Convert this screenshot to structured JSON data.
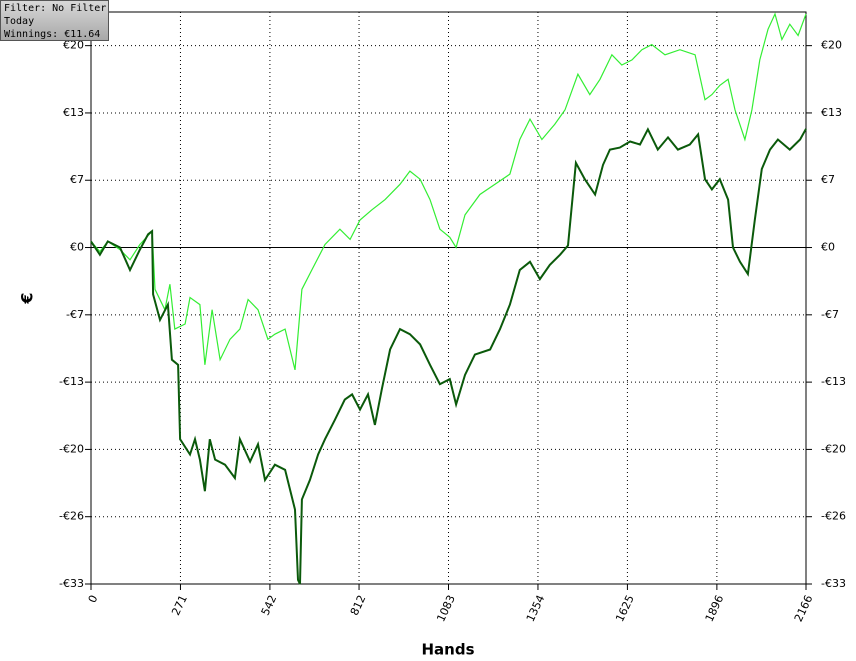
{
  "info": {
    "lines": [
      "Filter: No Filter",
      "Today",
      "Winnings: €11.64"
    ]
  },
  "chart_data": {
    "type": "line",
    "xlabel": "Hands",
    "ylabel": "€",
    "xlim": [
      0,
      2166
    ],
    "xticks": [
      0,
      271,
      542,
      812,
      1083,
      1354,
      1625,
      1896,
      2166
    ],
    "ylim": [
      -33,
      23.1
    ],
    "yticks": [
      {
        "value": 19.8,
        "label": "€20"
      },
      {
        "value": 13.2,
        "label": "€13"
      },
      {
        "value": 6.6,
        "label": "€7"
      },
      {
        "value": 0,
        "label": "€0"
      },
      {
        "value": -6.6,
        "label": "-€7"
      },
      {
        "value": -13.2,
        "label": "-€13"
      },
      {
        "value": -19.8,
        "label": "-€20"
      },
      {
        "value": -26.4,
        "label": "-€26"
      },
      {
        "value": -33,
        "label": "-€33"
      }
    ],
    "grid": true,
    "series": [
      {
        "color": "#33ee33",
        "x": [
          0,
          27,
          51,
          88,
          118,
          148,
          185,
          194,
          224,
          239,
          254,
          285,
          300,
          330,
          345,
          367,
          391,
          421,
          451,
          476,
          506,
          536,
          557,
          588,
          618,
          639,
          669,
          709,
          754,
          785,
          815,
          851,
          891,
          936,
          966,
          997,
          1027,
          1057,
          1087,
          1106,
          1133,
          1178,
          1224,
          1269,
          1299,
          1330,
          1366,
          1405,
          1436,
          1475,
          1511,
          1542,
          1578,
          1608,
          1639,
          1669,
          1699,
          1739,
          1784,
          1830,
          1860,
          1881,
          1905,
          1930,
          1951,
          1981,
          2002,
          2026,
          2051,
          2072,
          2093,
          2117,
          2142,
          2166
        ],
        "values": [
          0.6,
          -0.4,
          0.6,
          -0.2,
          -1.2,
          0.3,
          1.6,
          -4.1,
          -6.1,
          -3.6,
          -8,
          -7.5,
          -4.9,
          -5.6,
          -11.5,
          -6.1,
          -11,
          -9,
          -8,
          -5.1,
          -6.1,
          -9,
          -8.5,
          -8,
          -12,
          -4.1,
          -2.2,
          0.3,
          1.8,
          0.8,
          2.7,
          3.7,
          4.7,
          6.2,
          7.5,
          6.7,
          4.7,
          1.8,
          1,
          0,
          3.2,
          5.2,
          6.2,
          7.2,
          10.6,
          12.6,
          10.6,
          12.1,
          13.5,
          17,
          15,
          16.5,
          18.9,
          17.9,
          18.4,
          19.4,
          19.9,
          18.9,
          19.4,
          18.9,
          14.5,
          15,
          15.9,
          16.5,
          13.5,
          10.6,
          13.5,
          18.4,
          21.4,
          22.9,
          20.4,
          21.9,
          20.8,
          22.9
        ]
      },
      {
        "color": "#0b5a0b",
        "x": [
          0,
          27,
          51,
          88,
          118,
          148,
          173,
          185,
          188,
          209,
          233,
          245,
          264,
          270,
          300,
          315,
          330,
          345,
          360,
          376,
          406,
          436,
          451,
          482,
          506,
          527,
          557,
          588,
          618,
          627,
          633,
          639,
          663,
          688,
          709,
          739,
          769,
          791,
          815,
          839,
          860,
          881,
          906,
          936,
          966,
          997,
          1027,
          1057,
          1087,
          1106,
          1133,
          1163,
          1209,
          1239,
          1269,
          1299,
          1330,
          1360,
          1390,
          1421,
          1445,
          1469,
          1496,
          1527,
          1551,
          1572,
          1602,
          1633,
          1663,
          1687,
          1717,
          1748,
          1778,
          1814,
          1839,
          1860,
          1881,
          1905,
          1930,
          1945,
          1966,
          1990,
          2011,
          2032,
          2057,
          2081,
          2117,
          2148,
          2166
        ],
        "values": [
          0.6,
          -0.7,
          0.6,
          0,
          -2.2,
          -0.2,
          1.3,
          1.6,
          -4.6,
          -7.1,
          -5.6,
          -11,
          -11.5,
          -18.8,
          -20.3,
          -18.8,
          -20.8,
          -23.9,
          -18.8,
          -20.8,
          -21.3,
          -22.6,
          -18.8,
          -21,
          -19.3,
          -22.8,
          -21.3,
          -21.8,
          -25.7,
          -32.6,
          -33,
          -24.7,
          -22.8,
          -20.3,
          -18.8,
          -16.9,
          -14.9,
          -14.4,
          -15.9,
          -14.4,
          -17.4,
          -13.9,
          -10,
          -8,
          -8.5,
          -9.5,
          -11.5,
          -13.4,
          -12.9,
          -15.4,
          -12.5,
          -10.5,
          -10,
          -8,
          -5.6,
          -2.2,
          -1.4,
          -3.1,
          -1.7,
          -0.7,
          0.2,
          8.3,
          6.7,
          5.2,
          8.1,
          9.6,
          9.8,
          10.4,
          10.1,
          11.6,
          9.6,
          10.8,
          9.6,
          10.1,
          11.1,
          6.7,
          5.7,
          6.7,
          4.7,
          0,
          -1.4,
          -2.6,
          2.7,
          7.7,
          9.6,
          10.6,
          9.6,
          10.6,
          11.64
        ]
      }
    ]
  }
}
